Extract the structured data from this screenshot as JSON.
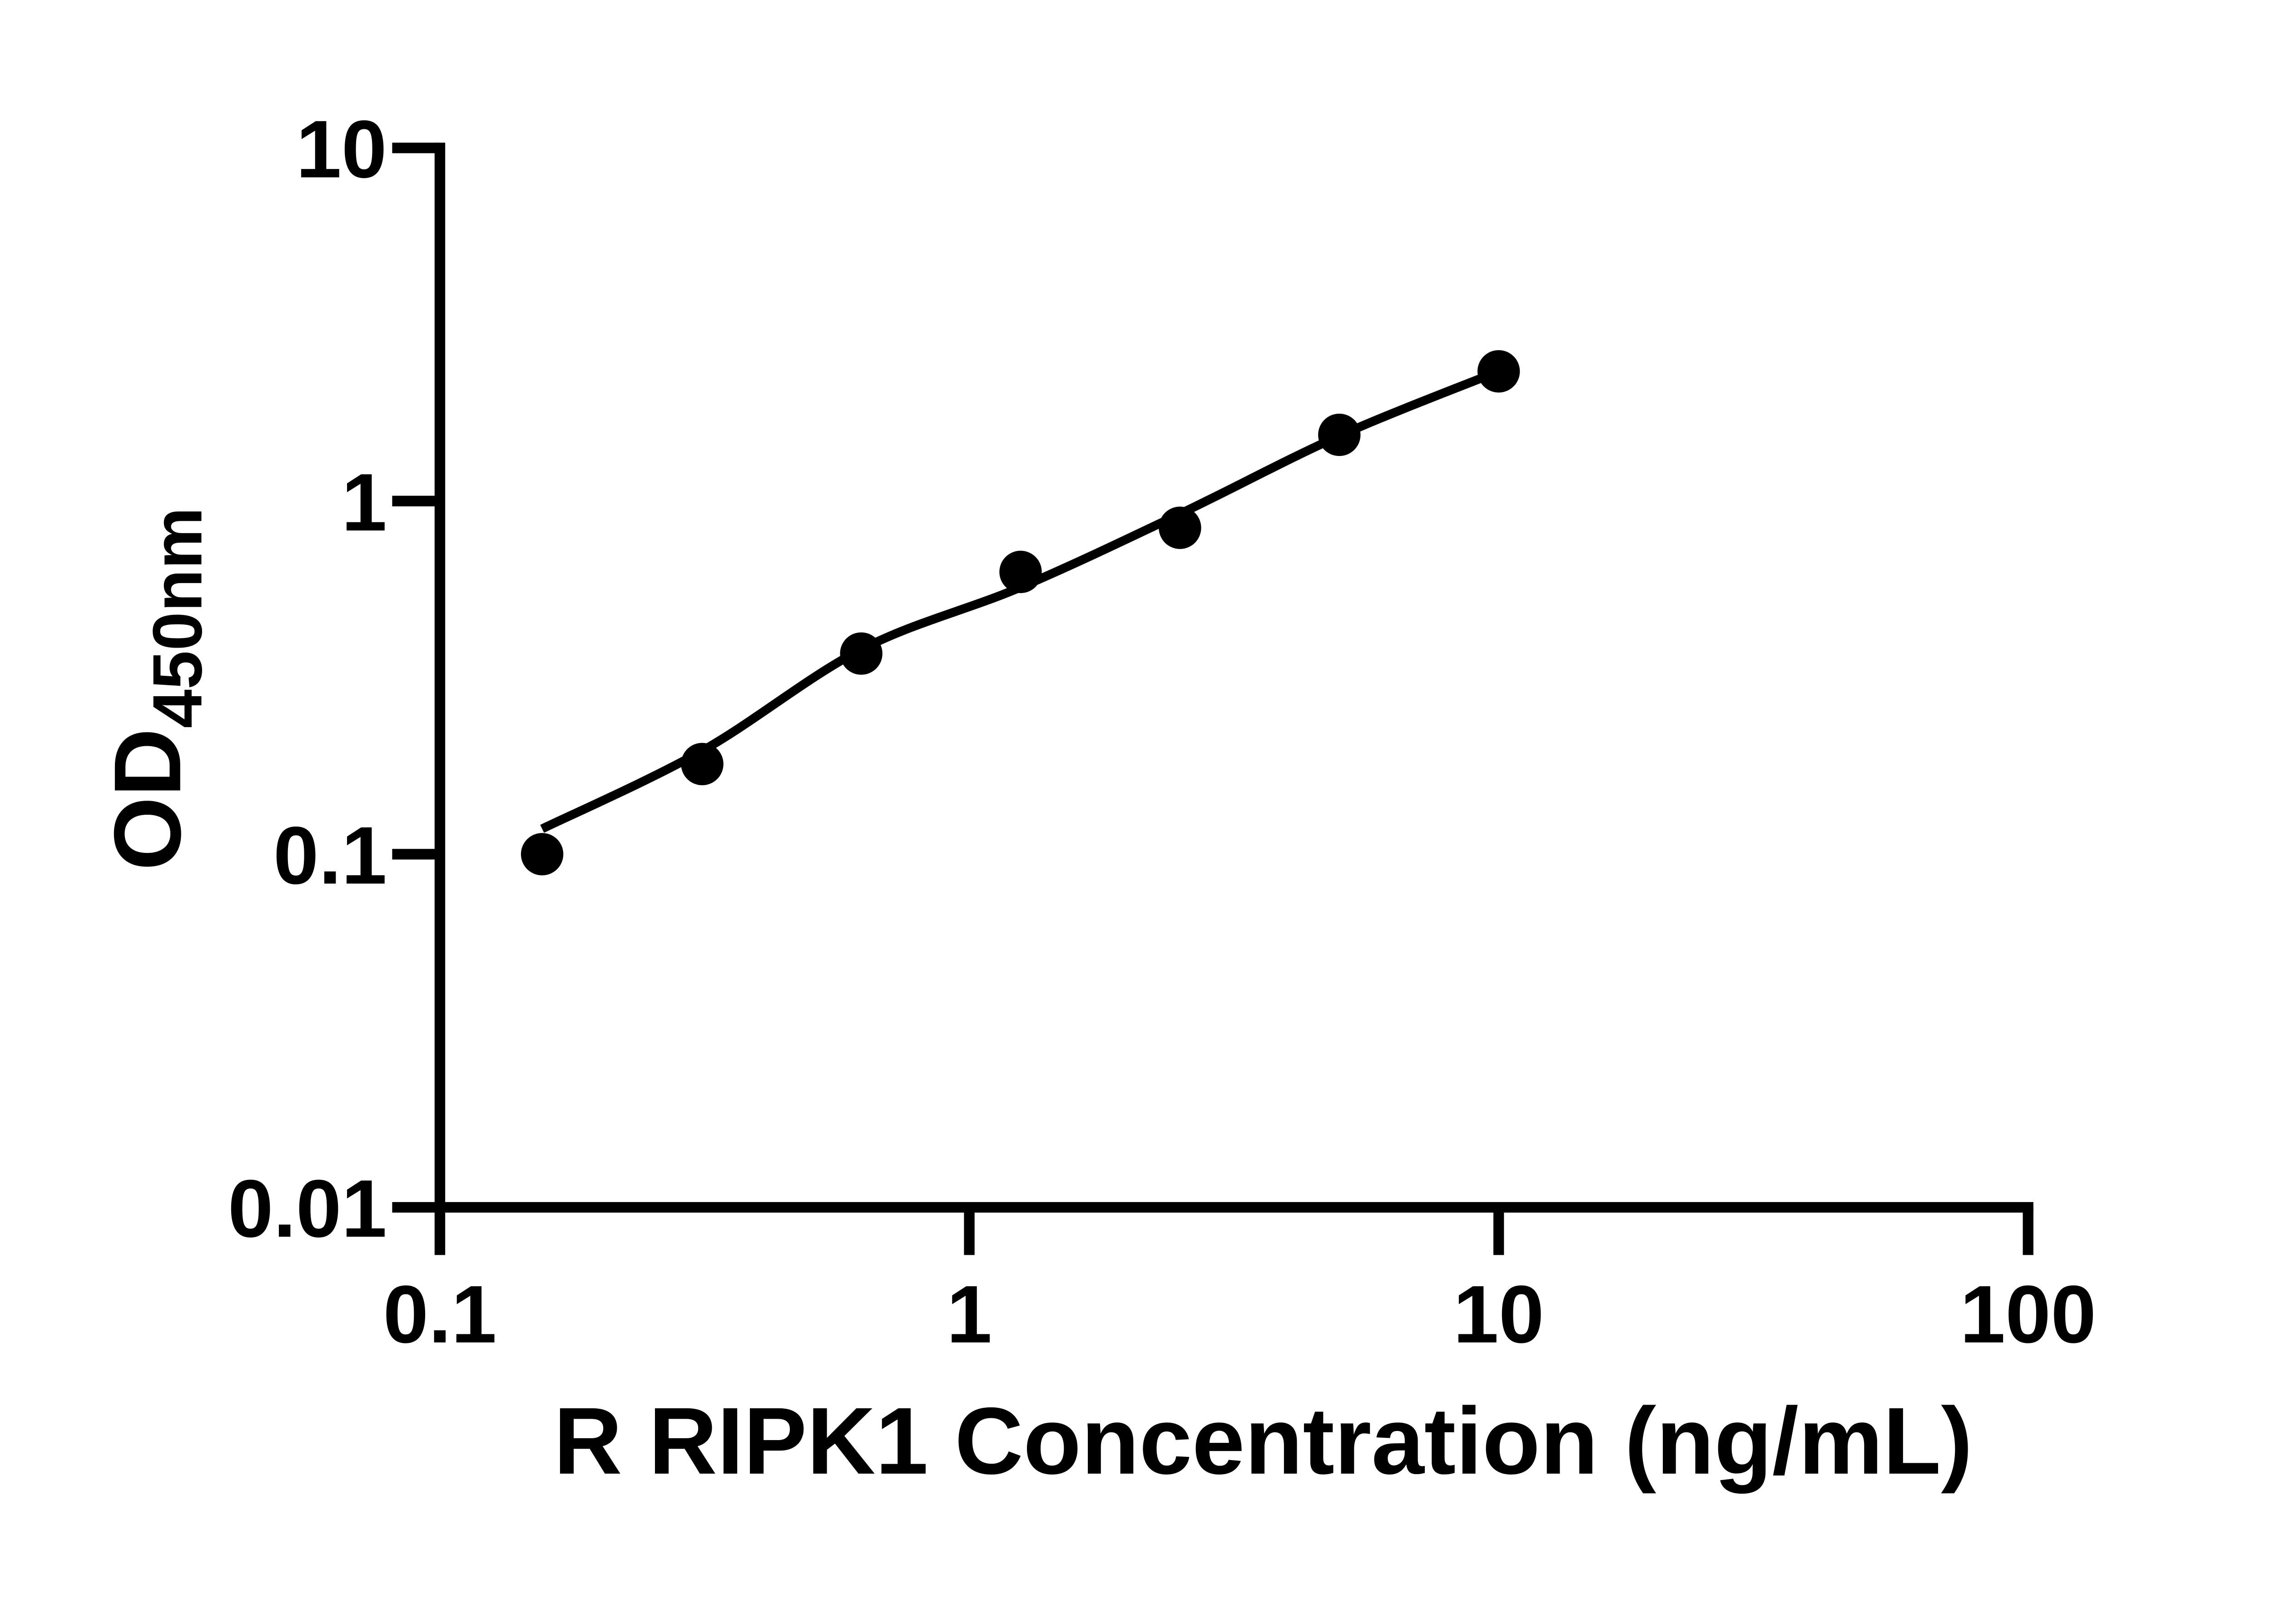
{
  "figure": {
    "background_color": "#ffffff",
    "foreground_color": "#000000"
  },
  "chart_data": {
    "type": "scatter",
    "title": "",
    "xlabel": "R RIPK1 Concentration (ng/mL)",
    "ylabel_main": "OD",
    "ylabel_subscript": "450nm",
    "x_scale": "log",
    "y_scale": "log",
    "xlim": [
      0.1,
      100
    ],
    "ylim": [
      0.01,
      10
    ],
    "grid": false,
    "legend_position": "none",
    "x_ticks": [
      {
        "value": 0.1,
        "label": "0.1"
      },
      {
        "value": 1,
        "label": "1"
      },
      {
        "value": 10,
        "label": "10"
      },
      {
        "value": 100,
        "label": "100"
      }
    ],
    "y_ticks": [
      {
        "value": 10,
        "label": "10"
      },
      {
        "value": 1,
        "label": "1"
      },
      {
        "value": 0.1,
        "label": "0.1"
      },
      {
        "value": 0.01,
        "label": "0.01"
      }
    ],
    "series": [
      {
        "name": "standards",
        "marker": "filled-circle",
        "color": "#000000",
        "x": [
          0.156,
          0.313,
          0.625,
          1.25,
          2.5,
          5,
          10
        ],
        "y": [
          0.1,
          0.18,
          0.37,
          0.63,
          0.84,
          1.54,
          2.33
        ]
      }
    ],
    "fit_curve": {
      "name": "standard-curve-fit",
      "color": "#000000",
      "x": [
        0.156,
        0.3125,
        0.625,
        1.25,
        2.5,
        5,
        10
      ],
      "y": [
        0.118,
        0.196,
        0.38,
        0.57,
        0.92,
        1.53,
        2.33
      ]
    }
  }
}
